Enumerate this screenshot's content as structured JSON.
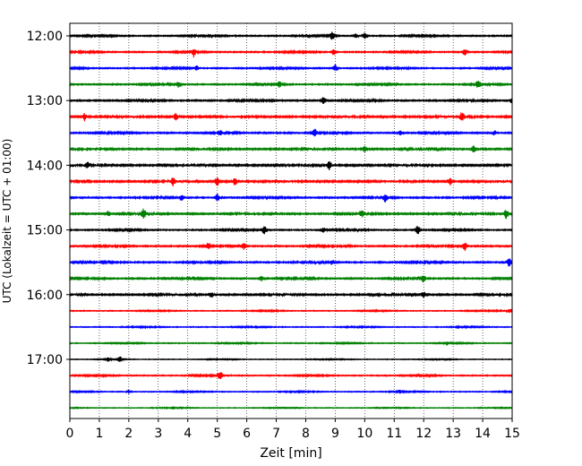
{
  "chart_data": {
    "type": "line",
    "title": "",
    "xlabel": "Zeit  [min]",
    "ylabel": "UTC (Lokalzeit = UTC + 01:00)",
    "xlim": [
      0,
      15
    ],
    "x_ticks": [
      "0",
      "1",
      "2",
      "3",
      "4",
      "5",
      "6",
      "7",
      "8",
      "9",
      "10",
      "11",
      "12",
      "13",
      "14",
      "15"
    ],
    "y_tick_labels": [
      "12:00",
      "13:00",
      "14:00",
      "15:00",
      "16:00",
      "17:00"
    ],
    "vertical_grid": true,
    "grid_style": "dotted",
    "trace_colors": [
      "#000000",
      "#ff0000",
      "#0000ff",
      "#008000"
    ],
    "traces": [
      {
        "start": "12:00",
        "color": "#000000",
        "noise": 0.35,
        "spikes": [
          [
            8.9,
            3.5
          ],
          [
            9.7,
            2.0
          ],
          [
            10.0,
            2.5
          ]
        ]
      },
      {
        "start": "12:15",
        "color": "#ff0000",
        "noise": 0.35,
        "spikes": [
          [
            4.2,
            3.5
          ],
          [
            8.95,
            3.0
          ],
          [
            13.4,
            3.0
          ]
        ]
      },
      {
        "start": "12:30",
        "color": "#0000ff",
        "noise": 0.35,
        "spikes": [
          [
            4.3,
            2.0
          ],
          [
            9.0,
            3.0
          ]
        ]
      },
      {
        "start": "12:45",
        "color": "#008000",
        "noise": 0.35,
        "spikes": [
          [
            3.7,
            2.5
          ],
          [
            7.1,
            2.5
          ],
          [
            13.85,
            3.5
          ]
        ]
      },
      {
        "start": "13:00",
        "color": "#000000",
        "noise": 0.4,
        "spikes": [
          [
            8.6,
            3.0
          ],
          [
            15.0,
            2.0
          ]
        ]
      },
      {
        "start": "13:15",
        "color": "#ff0000",
        "noise": 0.5,
        "spikes": [
          [
            0.5,
            3.0
          ],
          [
            3.6,
            3.0
          ],
          [
            13.3,
            3.5
          ]
        ]
      },
      {
        "start": "13:30",
        "color": "#0000ff",
        "noise": 0.4,
        "spikes": [
          [
            5.1,
            2.0
          ],
          [
            8.3,
            3.5
          ],
          [
            11.2,
            2.0
          ],
          [
            14.4,
            2.0
          ]
        ]
      },
      {
        "start": "13:45",
        "color": "#008000",
        "noise": 0.45,
        "spikes": [
          [
            10.0,
            2.5
          ],
          [
            13.7,
            3.5
          ]
        ]
      },
      {
        "start": "14:00",
        "color": "#000000",
        "noise": 0.5,
        "spikes": [
          [
            0.6,
            2.0
          ],
          [
            8.8,
            3.5
          ]
        ]
      },
      {
        "start": "14:15",
        "color": "#ff0000",
        "noise": 0.5,
        "spikes": [
          [
            3.5,
            3.0
          ],
          [
            5.0,
            4.0
          ],
          [
            5.6,
            3.0
          ],
          [
            12.9,
            3.0
          ]
        ]
      },
      {
        "start": "14:30",
        "color": "#0000ff",
        "noise": 0.4,
        "spikes": [
          [
            3.8,
            2.5
          ],
          [
            5.0,
            3.5
          ],
          [
            10.7,
            3.5
          ]
        ]
      },
      {
        "start": "14:45",
        "color": "#008000",
        "noise": 0.45,
        "spikes": [
          [
            1.3,
            2.0
          ],
          [
            2.5,
            3.5
          ],
          [
            9.9,
            2.5
          ],
          [
            14.8,
            4.0
          ]
        ]
      },
      {
        "start": "15:00",
        "color": "#000000",
        "noise": 0.35,
        "spikes": [
          [
            6.6,
            3.5
          ],
          [
            8.6,
            2.0
          ],
          [
            11.8,
            4.0
          ]
        ]
      },
      {
        "start": "15:15",
        "color": "#ff0000",
        "noise": 0.4,
        "spikes": [
          [
            4.7,
            3.0
          ],
          [
            5.9,
            2.5
          ],
          [
            13.4,
            3.5
          ]
        ]
      },
      {
        "start": "15:30",
        "color": "#0000ff",
        "noise": 0.4,
        "spikes": [
          [
            8.9,
            2.0
          ],
          [
            14.9,
            3.5
          ]
        ]
      },
      {
        "start": "15:45",
        "color": "#008000",
        "noise": 0.4,
        "spikes": [
          [
            6.5,
            2.0
          ],
          [
            12.0,
            3.5
          ]
        ]
      },
      {
        "start": "16:00",
        "color": "#000000",
        "noise": 0.45,
        "spikes": [
          [
            4.8,
            2.5
          ],
          [
            12.0,
            2.5
          ]
        ]
      },
      {
        "start": "16:15",
        "color": "#ff0000",
        "noise": 0.25,
        "spikes": [
          [
            14.9,
            1.5
          ]
        ]
      },
      {
        "start": "16:30",
        "color": "#0000ff",
        "noise": 0.25,
        "spikes": []
      },
      {
        "start": "16:45",
        "color": "#008000",
        "noise": 0.25,
        "spikes": [
          [
            12.8,
            1.5
          ]
        ]
      },
      {
        "start": "17:00",
        "color": "#000000",
        "noise": 0.2,
        "spikes": [
          [
            1.3,
            1.5
          ],
          [
            1.7,
            2.5
          ]
        ]
      },
      {
        "start": "17:15",
        "color": "#ff0000",
        "noise": 0.3,
        "spikes": [
          [
            5.1,
            3.5
          ]
        ]
      },
      {
        "start": "17:30",
        "color": "#0000ff",
        "noise": 0.25,
        "spikes": [
          [
            2.0,
            1.5
          ],
          [
            11.2,
            1.5
          ]
        ]
      },
      {
        "start": "17:45",
        "color": "#008000",
        "noise": 0.2,
        "spikes": []
      }
    ]
  }
}
